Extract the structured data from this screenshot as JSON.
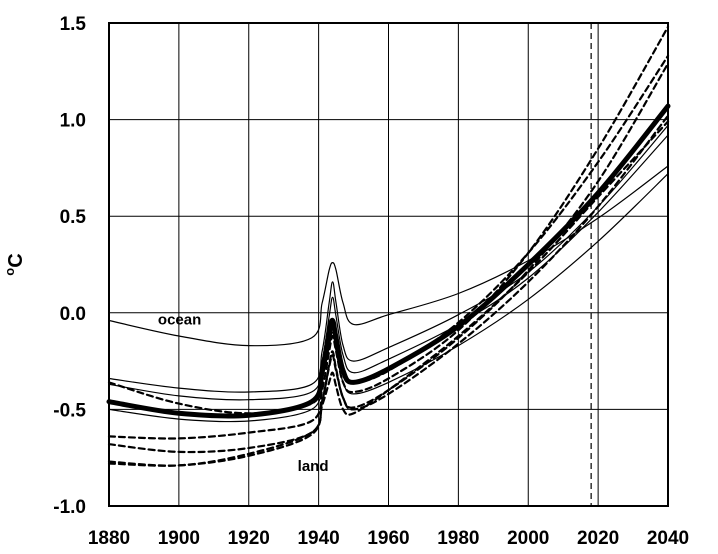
{
  "chart_data": {
    "type": "line",
    "title": "",
    "xlabel": "",
    "ylabel": {
      "prefix": "o",
      "main": "C"
    },
    "xlim": [
      1880,
      2040
    ],
    "ylim": [
      -1.0,
      1.5
    ],
    "x_ticks": [
      1880,
      1900,
      1920,
      1940,
      1960,
      1980,
      2000,
      2020,
      2040
    ],
    "y_ticks": [
      "1.5",
      "1.0",
      "0.5",
      "0.0",
      "-0.5",
      "-1.0"
    ],
    "grid": true,
    "reference_line": {
      "x": 2018,
      "style": "dashed"
    },
    "annotations": [
      {
        "text": "ocean",
        "x": 1894,
        "y": -0.06
      },
      {
        "text": "land",
        "x": 1934,
        "y": -0.82
      }
    ],
    "series": [
      {
        "style": "thin",
        "x": [
          1880,
          1900,
          1920,
          1938,
          1941,
          1943,
          1944,
          1945,
          1947,
          1950,
          1960,
          1980,
          2000,
          2020,
          2040
        ],
        "y": [
          -0.04,
          -0.12,
          -0.17,
          -0.13,
          0.05,
          0.22,
          0.26,
          0.22,
          0.05,
          -0.06,
          -0.01,
          0.1,
          0.27,
          0.49,
          0.76
        ]
      },
      {
        "style": "thin",
        "x": [
          1880,
          1900,
          1920,
          1938,
          1941,
          1943,
          1944,
          1945,
          1947,
          1950,
          1960,
          1980,
          2000,
          2020,
          2040
        ],
        "y": [
          -0.34,
          -0.39,
          -0.41,
          -0.37,
          -0.2,
          0.05,
          0.16,
          0.05,
          -0.17,
          -0.25,
          -0.18,
          -0.01,
          0.21,
          0.55,
          0.97
        ]
      },
      {
        "style": "thin",
        "x": [
          1880,
          1900,
          1920,
          1938,
          1941,
          1943,
          1944,
          1945,
          1947,
          1950,
          1960,
          1980,
          2000,
          2020,
          2040
        ],
        "y": [
          -0.37,
          -0.43,
          -0.45,
          -0.41,
          -0.25,
          -0.02,
          0.08,
          -0.02,
          -0.22,
          -0.31,
          -0.24,
          -0.06,
          0.18,
          0.52,
          0.92
        ]
      },
      {
        "style": "thin",
        "x": [
          1880,
          1900,
          1920,
          1938,
          1941,
          1943,
          1944,
          1945,
          1947,
          1950,
          1960,
          1980,
          2000,
          2020,
          2040
        ],
        "y": [
          -0.5,
          -0.55,
          -0.56,
          -0.5,
          -0.35,
          -0.18,
          -0.1,
          -0.2,
          -0.36,
          -0.42,
          -0.36,
          -0.17,
          0.07,
          0.37,
          0.72
        ]
      },
      {
        "style": "thick",
        "x": [
          1880,
          1900,
          1920,
          1938,
          1941,
          1943,
          1944,
          1945,
          1947,
          1950,
          1960,
          1980,
          2000,
          2020,
          2040
        ],
        "y": [
          -0.46,
          -0.52,
          -0.53,
          -0.46,
          -0.3,
          -0.1,
          -0.04,
          -0.13,
          -0.3,
          -0.36,
          -0.29,
          -0.07,
          0.25,
          0.62,
          1.07
        ]
      },
      {
        "style": "dashed",
        "x": [
          1880,
          1900,
          1920,
          1938,
          1941,
          1943,
          1944,
          1945,
          1947,
          1950,
          1960,
          1980,
          2000,
          2020,
          2040
        ],
        "y": [
          -0.36,
          -0.47,
          -0.52,
          -0.47,
          -0.33,
          -0.14,
          -0.08,
          -0.16,
          -0.3,
          -0.36,
          -0.3,
          -0.05,
          0.31,
          0.78,
          1.33
        ]
      },
      {
        "style": "dashed",
        "x": [
          1880,
          1900,
          1920,
          1938,
          1941,
          1943,
          1944,
          1945,
          1947,
          1950,
          1960,
          1980,
          2000,
          2020,
          2040
        ],
        "y": [
          -0.64,
          -0.65,
          -0.62,
          -0.56,
          -0.4,
          -0.2,
          -0.12,
          -0.2,
          -0.36,
          -0.41,
          -0.34,
          -0.09,
          0.31,
          0.85,
          1.48
        ]
      },
      {
        "style": "dashed",
        "x": [
          1880,
          1900,
          1920,
          1938,
          1941,
          1943,
          1944,
          1945,
          1947,
          1950,
          1960,
          1980,
          2000,
          2020,
          2040
        ],
        "y": [
          -0.68,
          -0.72,
          -0.7,
          -0.62,
          -0.46,
          -0.27,
          -0.2,
          -0.29,
          -0.44,
          -0.49,
          -0.4,
          -0.13,
          0.22,
          0.68,
          1.29
        ]
      },
      {
        "style": "dashed",
        "x": [
          1880,
          1900,
          1920,
          1938,
          1941,
          1943,
          1944,
          1945,
          1947,
          1950,
          1960,
          1980,
          2000,
          2020,
          2040
        ],
        "y": [
          -0.78,
          -0.79,
          -0.74,
          -0.63,
          -0.46,
          -0.28,
          -0.22,
          -0.3,
          -0.44,
          -0.5,
          -0.42,
          -0.16,
          0.16,
          0.55,
          1.02
        ]
      },
      {
        "style": "dashed",
        "x": [
          1880,
          1900,
          1920,
          1938,
          1941,
          1943,
          1944,
          1945,
          1947,
          1950,
          1960,
          1980,
          2000,
          2020,
          2040
        ],
        "y": [
          -0.77,
          -0.79,
          -0.73,
          -0.62,
          -0.48,
          -0.36,
          -0.31,
          -0.38,
          -0.5,
          -0.52,
          -0.4,
          -0.12,
          0.21,
          0.6,
          0.99
        ]
      }
    ]
  }
}
